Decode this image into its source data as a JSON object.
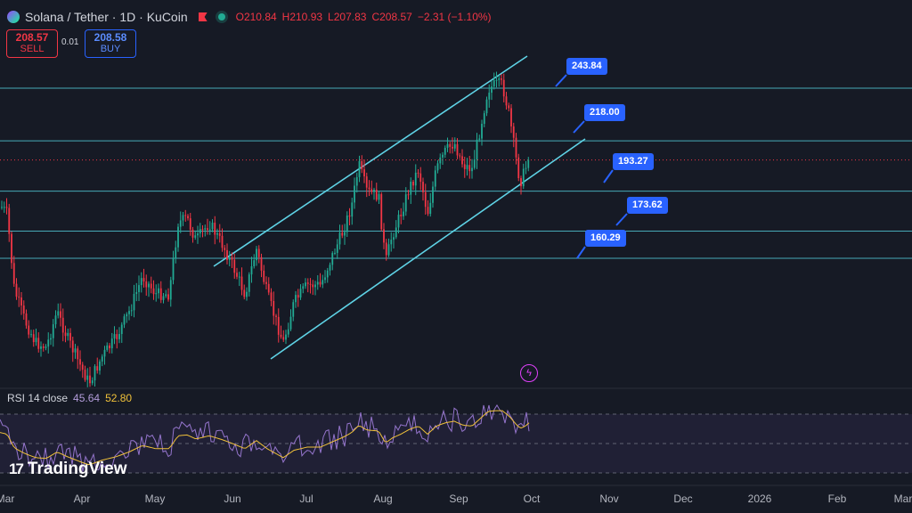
{
  "header": {
    "title": "Solana / Tether · 1D · KuCoin",
    "open": "O210.84",
    "high": "H210.93",
    "low": "L207.83",
    "close": "C208.57",
    "change": "−2.31 (−1.10%)"
  },
  "trade": {
    "sell_price": "208.57",
    "sell_label": "SELL",
    "spread": "0.01",
    "buy_price": "208.58",
    "buy_label": "BUY"
  },
  "rsi": {
    "name": "RSI 14 close",
    "rsi_value": "45.64",
    "ma_value": "52.80"
  },
  "branding": {
    "name": "TradingView"
  },
  "annotations": [
    "243.84",
    "218.00",
    "193.27",
    "173.62",
    "160.29"
  ],
  "x_axis": [
    "Mar",
    "Apr",
    "May",
    "Jun",
    "Jul",
    "Aug",
    "Sep",
    "Oct",
    "Nov",
    "Dec",
    "2026",
    "Feb",
    "Mar"
  ],
  "colors": {
    "up": "#22ab94",
    "down": "#f23645",
    "level": "#4fc3d0",
    "channel": "#5fd3e6",
    "rsi": "#9575cd",
    "rsi_ma": "#f0c13a"
  },
  "chart_data": {
    "type": "candlestick",
    "symbol": "Solana / Tether",
    "interval": "1D",
    "exchange": "KuCoin",
    "horizontal_levels": [
      243.84,
      218.0,
      193.27,
      173.62,
      160.29
    ],
    "last_price": 208.57,
    "rsi_bands": [
      70,
      50,
      30
    ]
  }
}
